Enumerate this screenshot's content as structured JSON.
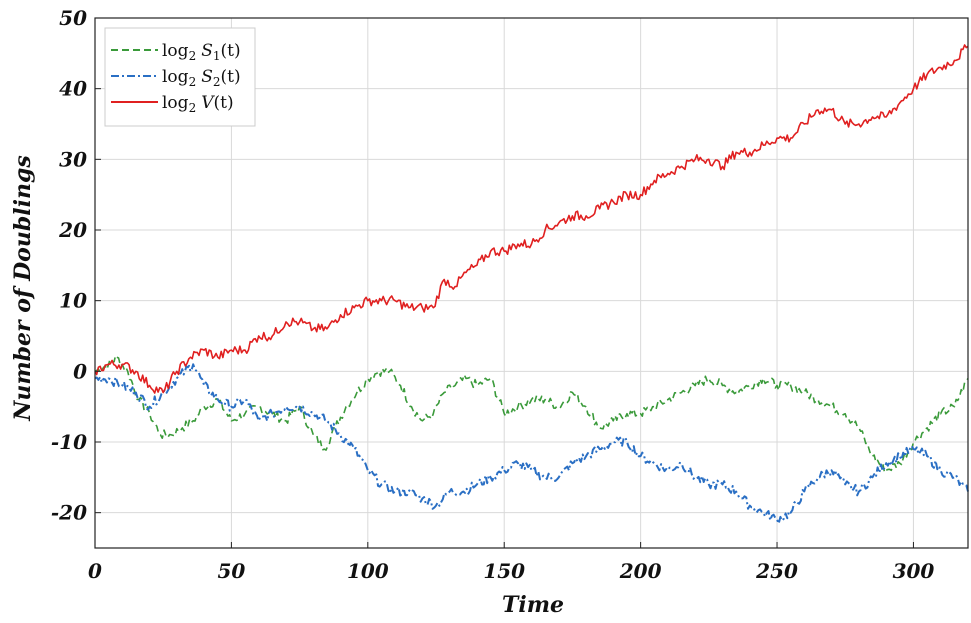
{
  "chart_data": {
    "type": "line",
    "title": "",
    "xlabel": "Time",
    "ylabel": "Number of Doublings",
    "xlim": [
      0,
      320
    ],
    "ylim": [
      -25,
      50
    ],
    "xticks": [
      0,
      50,
      100,
      150,
      200,
      250,
      300
    ],
    "yticks": [
      -20,
      -10,
      0,
      10,
      20,
      30,
      40,
      50
    ],
    "grid": true,
    "legend": "top-left",
    "series": [
      {
        "name": "log2 S1(t)",
        "legend_base": "log",
        "legend_sub": "2",
        "legend_var": "S",
        "legend_var_sub": "1",
        "legend_arg": "(t)",
        "color": "#3a9a3a",
        "style": "dashed",
        "x": [
          0,
          5,
          8,
          12,
          16,
          20,
          24,
          28,
          32,
          36,
          40,
          45,
          50,
          55,
          60,
          65,
          70,
          75,
          80,
          84,
          88,
          92,
          96,
          100,
          104,
          108,
          112,
          116,
          120,
          124,
          128,
          132,
          136,
          140,
          145,
          150,
          155,
          160,
          165,
          170,
          175,
          180,
          185,
          190,
          195,
          200,
          205,
          210,
          215,
          220,
          225,
          230,
          235,
          240,
          245,
          250,
          255,
          260,
          265,
          270,
          275,
          280,
          285,
          290,
          295,
          300,
          305,
          310,
          315,
          320
        ],
        "values": [
          0,
          1,
          2,
          0,
          -4,
          -6,
          -9,
          -9,
          -8,
          -7,
          -5,
          -4,
          -7,
          -6,
          -5,
          -6,
          -7,
          -5,
          -9,
          -11,
          -8,
          -5,
          -3,
          -1,
          0,
          0,
          -2,
          -5,
          -7,
          -6,
          -3,
          -2,
          -1,
          -2,
          -1,
          -6,
          -5,
          -4,
          -4,
          -5,
          -3,
          -5,
          -8,
          -7,
          -6,
          -6,
          -5,
          -4,
          -3,
          -2,
          -1,
          -2,
          -3,
          -2,
          -1,
          -2,
          -2,
          -3,
          -4,
          -5,
          -6,
          -8,
          -12,
          -14,
          -13,
          -10,
          -8,
          -6,
          -5,
          -1
        ]
      },
      {
        "name": "log2 S2(t)",
        "legend_base": "log",
        "legend_sub": "2",
        "legend_var": "S",
        "legend_var_sub": "2",
        "legend_arg": "(t)",
        "color": "#2a6fc4",
        "style": "dashdot",
        "x": [
          0,
          5,
          10,
          15,
          20,
          25,
          30,
          33,
          36,
          40,
          45,
          50,
          55,
          60,
          65,
          70,
          75,
          80,
          85,
          90,
          95,
          100,
          105,
          110,
          115,
          120,
          125,
          130,
          135,
          140,
          145,
          150,
          155,
          160,
          165,
          170,
          175,
          180,
          185,
          190,
          195,
          200,
          205,
          210,
          215,
          220,
          225,
          230,
          235,
          240,
          245,
          250,
          255,
          260,
          265,
          270,
          275,
          280,
          285,
          290,
          295,
          300,
          305,
          310,
          315,
          320
        ],
        "values": [
          -1,
          -1,
          -2,
          -3,
          -5,
          -3,
          -1,
          0,
          1,
          -2,
          -4,
          -5,
          -4,
          -7,
          -6,
          -5,
          -5,
          -6,
          -7,
          -9,
          -11,
          -14,
          -16,
          -17,
          -17,
          -18,
          -19,
          -17,
          -17,
          -16,
          -15,
          -14,
          -13,
          -14,
          -15,
          -15,
          -13,
          -12,
          -11,
          -10,
          -10,
          -12,
          -13,
          -14,
          -13,
          -15,
          -16,
          -16,
          -17,
          -19,
          -20,
          -21,
          -20,
          -17,
          -15,
          -14,
          -16,
          -17,
          -15,
          -13,
          -12,
          -11,
          -12,
          -14,
          -15,
          -17
        ]
      },
      {
        "name": "log2 V(t)",
        "legend_base": "log",
        "legend_sub": "2",
        "legend_var": "V",
        "legend_var_sub": "",
        "legend_arg": "(t)",
        "color": "#e02020",
        "style": "solid",
        "x": [
          0,
          5,
          10,
          15,
          20,
          25,
          30,
          35,
          40,
          45,
          50,
          55,
          60,
          65,
          70,
          75,
          80,
          85,
          90,
          95,
          100,
          105,
          110,
          115,
          120,
          124,
          128,
          132,
          136,
          140,
          145,
          150,
          155,
          160,
          165,
          170,
          175,
          180,
          185,
          190,
          195,
          200,
          205,
          210,
          215,
          220,
          225,
          230,
          235,
          240,
          245,
          250,
          255,
          260,
          265,
          270,
          275,
          280,
          285,
          290,
          295,
          300,
          305,
          310,
          315,
          320
        ],
        "values": [
          0,
          1,
          1,
          0,
          -2,
          -3,
          0,
          2,
          3,
          2,
          3,
          3,
          5,
          5,
          7,
          7,
          6,
          6,
          8,
          9,
          10,
          10,
          10,
          9,
          9,
          9,
          13,
          12,
          14,
          15,
          17,
          17,
          18,
          18,
          20,
          21,
          22,
          22,
          23,
          24,
          25,
          25,
          27,
          28,
          29,
          30,
          30,
          29,
          31,
          31,
          32,
          33,
          33,
          35,
          37,
          37,
          35,
          35,
          36,
          36,
          38,
          40,
          42,
          43,
          44,
          46
        ]
      }
    ]
  }
}
